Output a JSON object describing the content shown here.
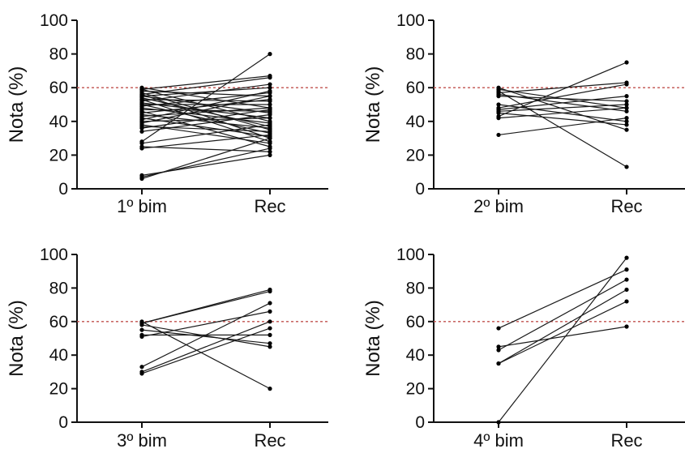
{
  "colors": {
    "line": "#1a1a1a",
    "point": "#000000",
    "axis": "#111111",
    "threshold": "#c0504d",
    "background": "#ffffff"
  },
  "chart_data": [
    {
      "type": "line",
      "ylabel": "Nota (%)",
      "ylim": [
        0,
        100
      ],
      "yticks": [
        0,
        20,
        40,
        60,
        80,
        100
      ],
      "categories": [
        "1º bim",
        "Rec"
      ],
      "threshold": 60,
      "pairs": [
        [
          60,
          48
        ],
        [
          59,
          67
        ],
        [
          59,
          40
        ],
        [
          58,
          55
        ],
        [
          57,
          35
        ],
        [
          56,
          66
        ],
        [
          56,
          30
        ],
        [
          55,
          45
        ],
        [
          55,
          60
        ],
        [
          54,
          37
        ],
        [
          53,
          52
        ],
        [
          53,
          28
        ],
        [
          52,
          62
        ],
        [
          51,
          42
        ],
        [
          50,
          50
        ],
        [
          50,
          33
        ],
        [
          49,
          57
        ],
        [
          48,
          39
        ],
        [
          47,
          46
        ],
        [
          46,
          25
        ],
        [
          45,
          53
        ],
        [
          44,
          36
        ],
        [
          43,
          48
        ],
        [
          42,
          31
        ],
        [
          41,
          58
        ],
        [
          40,
          42
        ],
        [
          39,
          55
        ],
        [
          38,
          27
        ],
        [
          37,
          34
        ],
        [
          36,
          47
        ],
        [
          34,
          44
        ],
        [
          28,
          80
        ],
        [
          27,
          38
        ],
        [
          25,
          22
        ],
        [
          24,
          32
        ],
        [
          8,
          20
        ],
        [
          7,
          24
        ],
        [
          6,
          30
        ]
      ]
    },
    {
      "type": "line",
      "ylabel": "Nota (%)",
      "ylim": [
        0,
        100
      ],
      "yticks": [
        0,
        20,
        40,
        60,
        80,
        100
      ],
      "categories": [
        "2º bim",
        "Rec"
      ],
      "threshold": 60,
      "pairs": [
        [
          60,
          35
        ],
        [
          59,
          48
        ],
        [
          58,
          13
        ],
        [
          57,
          63
        ],
        [
          56,
          46
        ],
        [
          55,
          52
        ],
        [
          50,
          40
        ],
        [
          48,
          62
        ],
        [
          47,
          55
        ],
        [
          46,
          50
        ],
        [
          45,
          38
        ],
        [
          43,
          75
        ],
        [
          42,
          48
        ],
        [
          32,
          42
        ]
      ]
    },
    {
      "type": "line",
      "ylabel": "Nota (%)",
      "ylim": [
        0,
        100
      ],
      "yticks": [
        0,
        20,
        40,
        60,
        80,
        100
      ],
      "categories": [
        "3º bim",
        "Rec"
      ],
      "threshold": 60,
      "pairs": [
        [
          60,
          20
        ],
        [
          59,
          78
        ],
        [
          58,
          45
        ],
        [
          55,
          47
        ],
        [
          52,
          52
        ],
        [
          51,
          66
        ],
        [
          33,
          71
        ],
        [
          30,
          60
        ],
        [
          29,
          56
        ],
        [
          59,
          79
        ]
      ]
    },
    {
      "type": "line",
      "ylabel": "Nota (%)",
      "ylim": [
        0,
        100
      ],
      "yticks": [
        0,
        20,
        40,
        60,
        80,
        100
      ],
      "categories": [
        "4º bim",
        "Rec"
      ],
      "threshold": 60,
      "pairs": [
        [
          56,
          91
        ],
        [
          45,
          57
        ],
        [
          43,
          85
        ],
        [
          35,
          72
        ],
        [
          35,
          79
        ],
        [
          0,
          98
        ]
      ]
    }
  ]
}
